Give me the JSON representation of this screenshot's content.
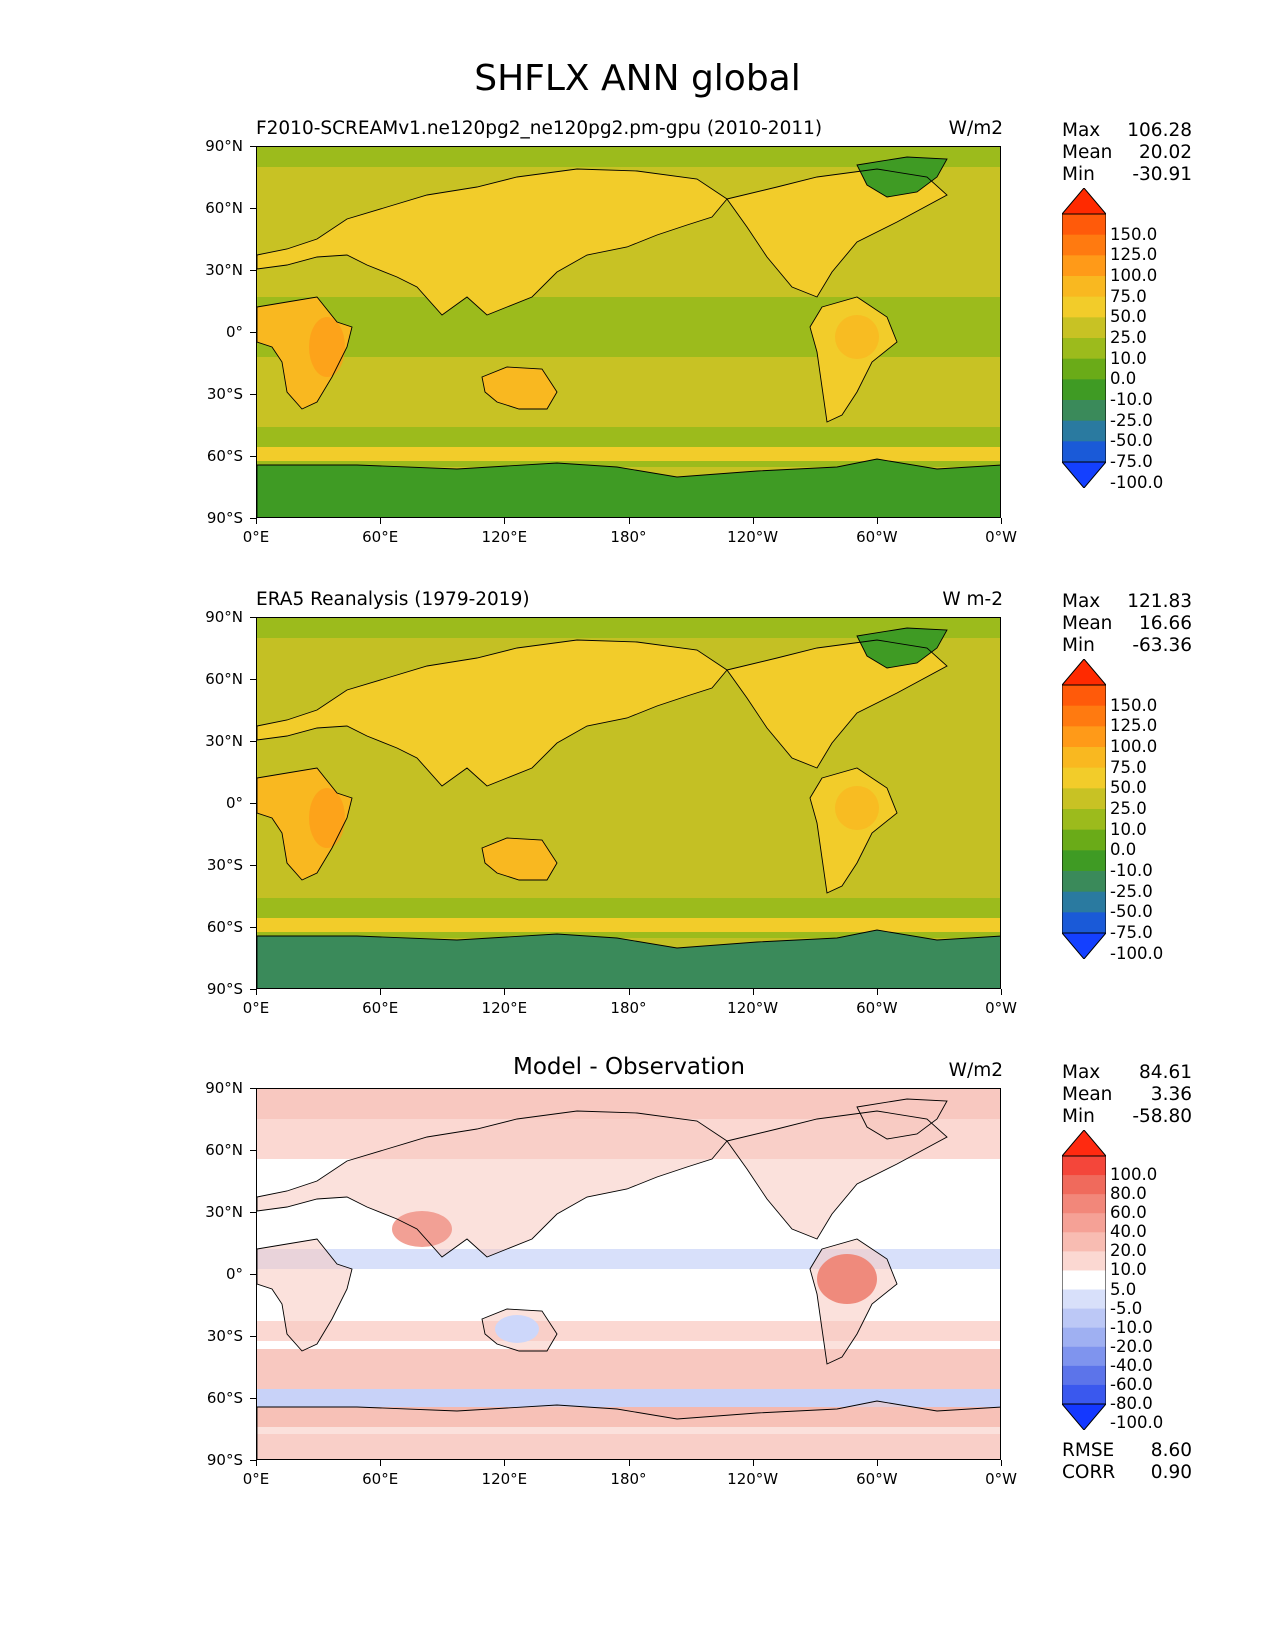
{
  "title": "SHFLX ANN global",
  "axes": {
    "lat_labels": [
      "90°N",
      "60°N",
      "30°N",
      "0°",
      "30°S",
      "60°S",
      "90°S"
    ],
    "lon_labels": [
      "0°E",
      "60°E",
      "120°E",
      "180°",
      "120°W",
      "60°W",
      "0°W"
    ]
  },
  "panels": [
    {
      "title": "F2010-SCREAMv1.ne120pg2_ne120pg2.pm-gpu (2010-2011)",
      "units": "W/m2",
      "stats": {
        "max_label": "Max",
        "max": "106.28",
        "mean_label": "Mean",
        "mean": "20.02",
        "min_label": "Min",
        "min": "-30.91"
      },
      "colorbar": {
        "levels": [
          "150.0",
          "125.0",
          "100.0",
          "75.0",
          "50.0",
          "25.0",
          "10.0",
          "0.0",
          "-10.0",
          "-25.0",
          "-50.0",
          "-75.0",
          "-100.0"
        ],
        "colors": [
          "#ff2a00",
          "#ff5a0a",
          "#ff7a10",
          "#ff9a18",
          "#f9b820",
          "#f2cc2a",
          "#c8c224",
          "#9cbb1c",
          "#6aab18",
          "#3f9b24",
          "#3a8a5a",
          "#2a7aa0",
          "#1a5ad8",
          "#1440ff"
        ]
      }
    },
    {
      "title": "ERA5 Reanalysis (1979-2019)",
      "units": "W m-2",
      "stats": {
        "max_label": "Max",
        "max": "121.83",
        "mean_label": "Mean",
        "mean": "16.66",
        "min_label": "Min",
        "min": "-63.36"
      },
      "colorbar": {
        "levels": [
          "150.0",
          "125.0",
          "100.0",
          "75.0",
          "50.0",
          "25.0",
          "10.0",
          "0.0",
          "-10.0",
          "-25.0",
          "-50.0",
          "-75.0",
          "-100.0"
        ],
        "colors": [
          "#ff2a00",
          "#ff5a0a",
          "#ff7a10",
          "#ff9a18",
          "#f9b820",
          "#f2cc2a",
          "#c8c224",
          "#9cbb1c",
          "#6aab18",
          "#3f9b24",
          "#3a8a5a",
          "#2a7aa0",
          "#1a5ad8",
          "#1440ff"
        ]
      }
    },
    {
      "title": "Model - Observation",
      "units": "W/m2",
      "stats": {
        "max_label": "Max",
        "max": "84.61",
        "mean_label": "Mean",
        "mean": "3.36",
        "min_label": "Min",
        "min": "-58.80"
      },
      "colorbar": {
        "levels": [
          "100.0",
          "80.0",
          "60.0",
          "40.0",
          "20.0",
          "10.0",
          "5.0",
          "-5.0",
          "-10.0",
          "-20.0",
          "-40.0",
          "-60.0",
          "-80.0",
          "-100.0"
        ],
        "colors": [
          "#ff2a10",
          "#f4463a",
          "#f06a5c",
          "#f2877a",
          "#f5a196",
          "#f8bcb2",
          "#fbd8d2",
          "#ffffff",
          "#d8e0fa",
          "#bcc8f6",
          "#9fb0f2",
          "#7f94ee",
          "#5c74ea",
          "#3a58ee",
          "#1438ff"
        ]
      },
      "footer": {
        "rmse_label": "RMSE",
        "rmse": "8.60",
        "corr_label": "CORR",
        "corr": "0.90"
      }
    }
  ]
}
